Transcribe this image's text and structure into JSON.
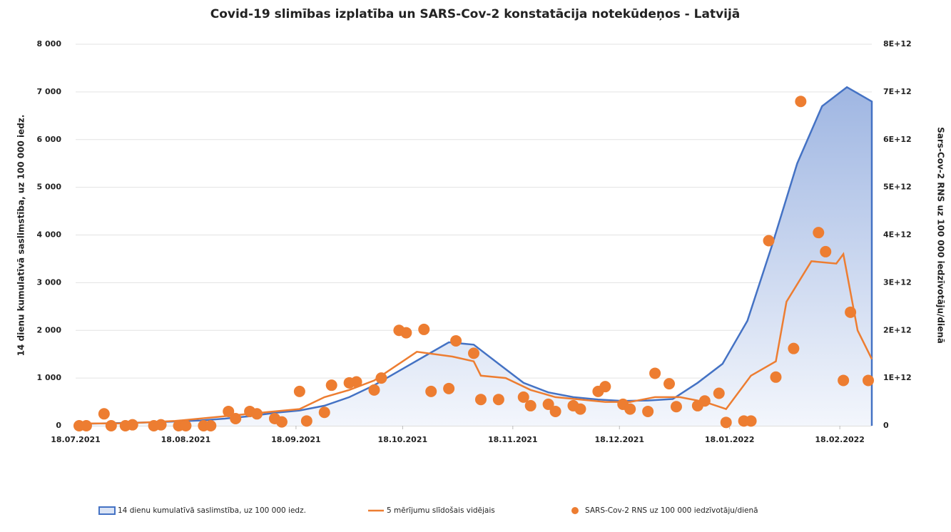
{
  "chart_data": {
    "type": "combo",
    "title": "Covid-19 slimības izplatība un SARS-Cov-2 konstatācija notekūdeņos - Latvijā",
    "ylabel": "14 dienu kumulatīvā saslimstība, uz 100 000 iedz.",
    "y2label": "Sars-Cov-2 RNS uz 100 000 iedzīvotāju/dienā",
    "xlim": [
      "18.07.2021",
      "27.02.2022"
    ],
    "xticks": [
      "18.07.2021",
      "18.08.2021",
      "18.09.2021",
      "18.10.2021",
      "18.11.2021",
      "18.12.2021",
      "18.01.2022",
      "18.02.2022"
    ],
    "ylim": [
      0,
      8000
    ],
    "yticks": [
      0,
      {
        "value": 1000,
        "label": "1 000"
      },
      {
        "value": 2000,
        "label": "2 000"
      },
      {
        "value": 3000,
        "label": "3 000"
      },
      {
        "value": 4000,
        "label": "4 000"
      },
      {
        "value": 5000,
        "label": "5 000"
      },
      {
        "value": 6000,
        "label": "6 000"
      },
      {
        "value": 7000,
        "label": "7 000"
      },
      {
        "value": 8000,
        "label": "8 000"
      }
    ],
    "y2lim": [
      0,
      8000000000000.0
    ],
    "y2ticks": [
      0,
      {
        "value": 1000000000000.0,
        "label": "1E+12"
      },
      {
        "value": 2000000000000.0,
        "label": "2E+12"
      },
      {
        "value": 3000000000000.0,
        "label": "3E+12"
      },
      {
        "value": 4000000000000.0,
        "label": "4E+12"
      },
      {
        "value": 5000000000000.0,
        "label": "5E+12"
      },
      {
        "value": 6000000000000.0,
        "label": "6E+12"
      },
      {
        "value": 7000000000000.0,
        "label": "7E+12"
      },
      {
        "value": 8000000000000.0,
        "label": "8E+12"
      }
    ],
    "grid": true,
    "legend": "bottom",
    "series": [
      {
        "name": "14 dienu kumulatīvā saslimstība, uz 100 000 iedz.",
        "type": "area",
        "color": "#4472c4",
        "x": [
          "18.07.2021",
          "25.07.2021",
          "01.08.2021",
          "08.08.2021",
          "15.08.2021",
          "22.08.2021",
          "29.08.2021",
          "05.09.2021",
          "12.09.2021",
          "19.09.2021",
          "26.09.2021",
          "03.10.2021",
          "10.10.2021",
          "17.10.2021",
          "24.10.2021",
          "31.10.2021",
          "07.11.2021",
          "14.11.2021",
          "21.11.2021",
          "28.11.2021",
          "05.12.2021",
          "12.12.2021",
          "19.12.2021",
          "26.12.2021",
          "02.01.2022",
          "09.01.2022",
          "16.01.2022",
          "23.01.2022",
          "30.01.2022",
          "06.02.2022",
          "13.02.2022",
          "20.02.2022",
          "27.02.2022"
        ],
        "values": [
          40,
          50,
          60,
          70,
          90,
          110,
          150,
          200,
          270,
          320,
          420,
          600,
          850,
          1150,
          1450,
          1750,
          1700,
          1300,
          900,
          700,
          600,
          550,
          520,
          530,
          560,
          900,
          1300,
          2200,
          3800,
          5500,
          6700,
          7100,
          6800
        ]
      },
      {
        "name": "5 mērījumu slīdošais vidējais",
        "type": "line",
        "color": "#ed7d31",
        "axis": "y2",
        "x": [
          "18.07.2021",
          "01.08.2021",
          "15.08.2021",
          "29.08.2021",
          "12.09.2021",
          "19.09.2021",
          "26.09.2021",
          "03.10.2021",
          "10.10.2021",
          "17.10.2021",
          "22.10.2021",
          "01.11.2021",
          "07.11.2021",
          "09.11.2021",
          "16.11.2021",
          "23.11.2021",
          "30.11.2021",
          "07.12.2021",
          "14.12.2021",
          "21.12.2021",
          "28.12.2021",
          "04.01.2022",
          "11.01.2022",
          "17.01.2022",
          "24.01.2022",
          "31.01.2022",
          "03.02.2022",
          "10.02.2022",
          "17.02.2022",
          "19.02.2022",
          "23.02.2022",
          "27.02.2022"
        ],
        "values": [
          50000000000.0,
          50000000000.0,
          100000000000.0,
          200000000000.0,
          300000000000.0,
          350000000000.0,
          600000000000.0,
          750000000000.0,
          950000000000.0,
          1300000000000.0,
          1550000000000.0,
          1450000000000.0,
          1350000000000.0,
          1050000000000.0,
          1000000000000.0,
          750000000000.0,
          600000000000.0,
          550000000000.0,
          500000000000.0,
          500000000000.0,
          600000000000.0,
          600000000000.0,
          500000000000.0,
          350000000000.0,
          1050000000000.0,
          1350000000000.0,
          2600000000000.0,
          3450000000000.0,
          3400000000000.0,
          3600000000000.0,
          2000000000000.0,
          1400000000000.0
        ]
      },
      {
        "name": "SARS-Cov-2 RNS uz 100 000 iedzīvotāju/dienā",
        "type": "scatter",
        "color": "#ed7d31",
        "axis": "y2",
        "x": [
          "19.07.2021",
          "21.07.2021",
          "26.07.2021",
          "28.07.2021",
          "01.08.2021",
          "03.08.2021",
          "09.08.2021",
          "11.08.2021",
          "16.08.2021",
          "18.08.2021",
          "23.08.2021",
          "25.08.2021",
          "30.08.2021",
          "01.09.2021",
          "05.09.2021",
          "07.09.2021",
          "12.09.2021",
          "14.09.2021",
          "19.09.2021",
          "21.09.2021",
          "26.09.2021",
          "28.09.2021",
          "03.10.2021",
          "05.10.2021",
          "10.10.2021",
          "12.10.2021",
          "17.10.2021",
          "19.10.2021",
          "24.10.2021",
          "26.10.2021",
          "31.10.2021",
          "02.11.2021",
          "07.11.2021",
          "09.11.2021",
          "14.11.2021",
          "21.11.2021",
          "23.11.2021",
          "28.11.2021",
          "30.11.2021",
          "05.12.2021",
          "07.12.2021",
          "12.12.2021",
          "14.12.2021",
          "19.12.2021",
          "21.12.2021",
          "26.12.2021",
          "28.12.2021",
          "01.01.2022",
          "03.01.2022",
          "09.01.2022",
          "11.01.2022",
          "15.01.2022",
          "17.01.2022",
          "22.01.2022",
          "24.01.2022",
          "29.01.2022",
          "31.01.2022",
          "05.02.2022",
          "07.02.2022",
          "12.02.2022",
          "14.02.2022",
          "19.02.2022",
          "21.02.2022",
          "26.02.2022"
        ],
        "values": [
          0,
          0,
          250000000000.0,
          0,
          0,
          20000000000.0,
          0,
          20000000000.0,
          0,
          0,
          0,
          0,
          300000000000.0,
          150000000000.0,
          300000000000.0,
          250000000000.0,
          150000000000.0,
          80000000000.0,
          720000000000.0,
          100000000000.0,
          280000000000.0,
          850000000000.0,
          900000000000.0,
          920000000000.0,
          750000000000.0,
          1000000000000.0,
          2000000000000.0,
          1950000000000.0,
          2020000000000.0,
          720000000000.0,
          780000000000.0,
          1780000000000.0,
          1520000000000.0,
          550000000000.0,
          550000000000.0,
          600000000000.0,
          420000000000.0,
          450000000000.0,
          300000000000.0,
          420000000000.0,
          350000000000.0,
          720000000000.0,
          820000000000.0,
          450000000000.0,
          350000000000.0,
          300000000000.0,
          1100000000000.0,
          880000000000.0,
          400000000000.0,
          420000000000.0,
          520000000000.0,
          680000000000.0,
          70000000000.0,
          100000000000.0,
          100000000000.0,
          3880000000000.0,
          1020000000000.0,
          1620000000000.0,
          6800000000000.0,
          4050000000000.0,
          3650000000000.0,
          950000000000.0,
          2380000000000.0,
          950000000000.0
        ]
      }
    ]
  }
}
